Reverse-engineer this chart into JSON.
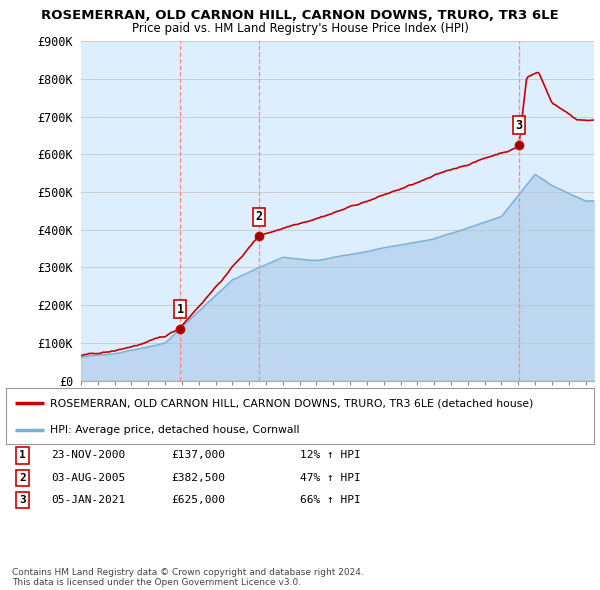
{
  "title": "ROSEMERRAN, OLD CARNON HILL, CARNON DOWNS, TRURO, TR3 6LE",
  "subtitle": "Price paid vs. HM Land Registry's House Price Index (HPI)",
  "ylabel_ticks": [
    "£0",
    "£100K",
    "£200K",
    "£300K",
    "£400K",
    "£500K",
    "£600K",
    "£700K",
    "£800K",
    "£900K"
  ],
  "ylim": [
    0,
    900000
  ],
  "xlim_start": 1995.0,
  "xlim_end": 2025.5,
  "sale_dates": [
    2000.9,
    2005.58,
    2021.02
  ],
  "sale_prices": [
    137000,
    382500,
    625000
  ],
  "sale_labels": [
    "1",
    "2",
    "3"
  ],
  "sale_info": [
    {
      "num": "1",
      "date": "23-NOV-2000",
      "price": "£137,000",
      "pct": "12% ↑ HPI"
    },
    {
      "num": "2",
      "date": "03-AUG-2005",
      "price": "£382,500",
      "pct": "47% ↑ HPI"
    },
    {
      "num": "3",
      "date": "05-JAN-2021",
      "price": "£625,000",
      "pct": "66% ↑ HPI"
    }
  ],
  "legend_entry1": "ROSEMERRAN, OLD CARNON HILL, CARNON DOWNS, TRURO, TR3 6LE (detached house)",
  "legend_entry2": "HPI: Average price, detached house, Cornwall",
  "footnote": "Contains HM Land Registry data © Crown copyright and database right 2024.\nThis data is licensed under the Open Government Licence v3.0.",
  "hpi_color": "#a8c8e8",
  "hpi_line_color": "#7bafd4",
  "sale_line_color": "#cc0000",
  "vline_color": "#ff8888",
  "background_color": "#ffffff",
  "grid_color": "#cccccc",
  "plot_bg_color": "#ddeeff"
}
